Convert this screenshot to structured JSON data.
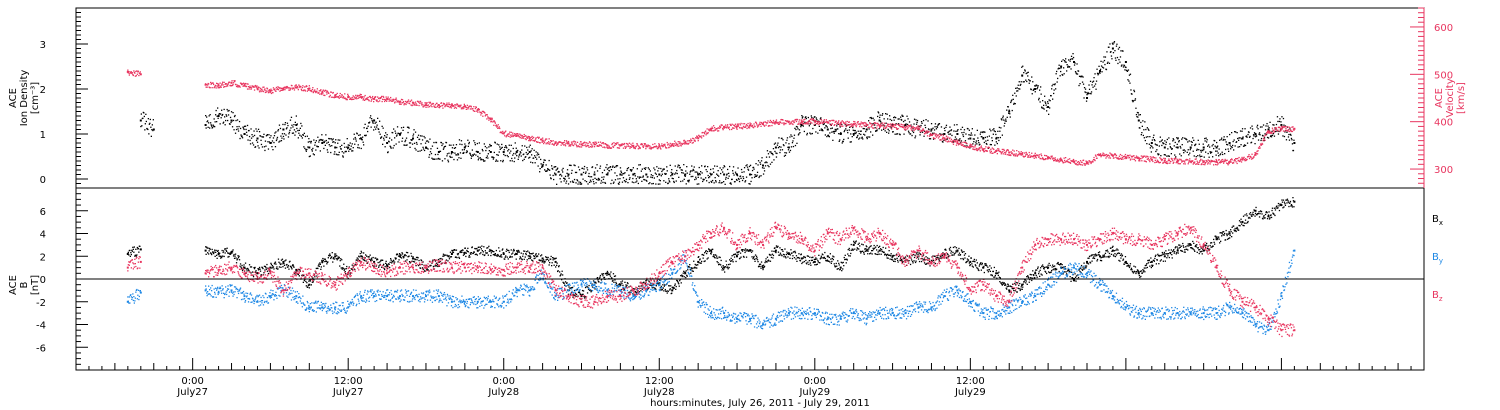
{
  "chart_data": [
    {
      "type": "scatter",
      "panel": "top",
      "ylabel_left": [
        "ACE",
        "Ion Density",
        "[cm⁻³]"
      ],
      "ylabel_right": [
        "ACE",
        "Velocity",
        "[km/s]"
      ],
      "ylim_left": [
        -0.2,
        3.8
      ],
      "yticks_left": [
        "0",
        "1",
        "2",
        "3"
      ],
      "ylim_right": [
        260,
        640
      ],
      "yticks_right": [
        "300",
        "400",
        "500",
        "600"
      ],
      "colors": {
        "density": "#000000",
        "velocity": "#e8355f",
        "right_axis": "#e8355f"
      },
      "series": [
        {
          "axis": "left",
          "color": "#000000",
          "x": [
            -4,
            -3,
            1,
            2,
            3,
            4,
            5,
            6,
            7,
            8,
            9,
            10,
            11,
            12,
            13,
            14,
            15,
            16,
            17,
            18,
            19,
            20,
            21,
            22,
            23,
            24,
            25,
            26,
            27,
            28,
            29,
            30,
            31,
            32,
            33,
            34,
            35,
            36,
            37,
            38,
            39,
            40,
            41,
            42,
            43,
            44,
            45,
            46,
            47,
            48,
            49,
            50,
            51,
            52,
            53,
            54,
            55,
            56,
            57,
            58,
            59,
            60,
            61,
            62,
            63,
            64,
            65,
            66,
            67,
            68,
            69,
            70,
            71,
            72,
            73,
            74,
            75,
            76,
            77,
            78,
            79,
            80,
            81,
            82,
            83,
            84,
            85
          ],
          "y": [
            1.3,
            1.1,
            1.2,
            1.4,
            1.3,
            1.0,
            0.9,
            0.8,
            1.1,
            1.2,
            0.7,
            0.8,
            0.7,
            0.7,
            0.9,
            1.3,
            0.8,
            1.0,
            0.9,
            0.7,
            0.6,
            0.6,
            0.7,
            0.6,
            0.6,
            0.6,
            0.6,
            0.6,
            0.3,
            0.1,
            0.1,
            0.1,
            0.1,
            0.1,
            0.1,
            0.1,
            0.1,
            0.1,
            0.1,
            0.1,
            0.1,
            0.1,
            0.1,
            0.1,
            0.1,
            0.3,
            0.7,
            0.7,
            1.2,
            1.2,
            1.1,
            1.0,
            1.0,
            1.1,
            1.3,
            1.2,
            1.2,
            1.1,
            1.1,
            1.0,
            1.0,
            0.9,
            0.9,
            0.9,
            1.5,
            2.3,
            2.0,
            1.6,
            2.5,
            2.6,
            1.8,
            2.4,
            2.9,
            2.6,
            1.3,
            0.8,
            0.7,
            0.7,
            0.7,
            0.7,
            0.7,
            0.8,
            0.9,
            1.0,
            1.1,
            1.2,
            0.8
          ]
        },
        {
          "axis": "right",
          "color": "#e8355f",
          "x": [
            -5,
            -4,
            1,
            2,
            3,
            4,
            5,
            6,
            7,
            8,
            9,
            10,
            11,
            12,
            13,
            14,
            15,
            16,
            17,
            18,
            19,
            20,
            21,
            22,
            23,
            24,
            25,
            26,
            27,
            28,
            29,
            30,
            31,
            32,
            33,
            34,
            35,
            36,
            37,
            38,
            39,
            40,
            41,
            42,
            43,
            44,
            45,
            46,
            47,
            48,
            49,
            50,
            51,
            52,
            53,
            54,
            55,
            56,
            57,
            58,
            59,
            60,
            61,
            62,
            63,
            64,
            65,
            66,
            67,
            68,
            69,
            70,
            71,
            72,
            73,
            74,
            75,
            76,
            77,
            78,
            79,
            80,
            81,
            82,
            83,
            84,
            85
          ],
          "y": [
            505,
            500,
            478,
            476,
            482,
            476,
            470,
            465,
            470,
            472,
            470,
            462,
            455,
            452,
            452,
            448,
            448,
            442,
            440,
            435,
            435,
            434,
            433,
            425,
            405,
            375,
            370,
            365,
            360,
            356,
            354,
            352,
            352,
            350,
            350,
            349,
            348,
            348,
            352,
            356,
            365,
            385,
            388,
            390,
            392,
            395,
            398,
            400,
            400,
            400,
            398,
            396,
            395,
            393,
            392,
            390,
            388,
            385,
            372,
            365,
            355,
            348,
            342,
            338,
            335,
            332,
            328,
            325,
            320,
            316,
            312,
            330,
            328,
            325,
            323,
            320,
            318,
            317,
            316,
            315,
            315,
            315,
            320,
            330,
            380,
            385,
            385
          ]
        }
      ]
    },
    {
      "type": "scatter",
      "panel": "bottom",
      "ylabel": [
        "ACE",
        "B",
        "[nT]"
      ],
      "ylim": [
        -8,
        8
      ],
      "yticks": [
        "-6",
        "-4",
        "-2",
        "0",
        "2",
        "4",
        "6"
      ],
      "legend_position": "right",
      "series": [
        {
          "name": "Bx",
          "color": "#000000",
          "x": [
            -5,
            -4,
            1,
            2,
            3,
            4,
            5,
            6,
            7,
            8,
            9,
            10,
            11,
            12,
            13,
            14,
            15,
            16,
            17,
            18,
            19,
            20,
            21,
            22,
            23,
            24,
            25,
            26,
            27,
            28,
            29,
            30,
            31,
            32,
            33,
            34,
            35,
            36,
            37,
            38,
            39,
            40,
            41,
            42,
            43,
            44,
            45,
            46,
            47,
            48,
            49,
            50,
            51,
            52,
            53,
            54,
            55,
            56,
            57,
            58,
            59,
            60,
            61,
            62,
            63,
            64,
            65,
            66,
            67,
            68,
            69,
            70,
            71,
            72,
            73,
            74,
            75,
            76,
            77,
            78,
            79,
            80,
            81,
            82,
            83,
            84,
            85
          ],
          "y": [
            2.2,
            2.6,
            2.5,
            2.2,
            2.3,
            1.0,
            0.5,
            1.0,
            1.5,
            0.8,
            -0.5,
            1.5,
            2.0,
            0.5,
            2.0,
            1.5,
            1.2,
            2.0,
            1.8,
            1.0,
            1.5,
            2.2,
            2.3,
            2.5,
            2.5,
            2.2,
            2.2,
            2.0,
            1.8,
            1.5,
            -1.0,
            -1.5,
            -0.5,
            0.5,
            -0.5,
            -1.0,
            -0.5,
            -0.5,
            -1.0,
            0.5,
            1.5,
            2.5,
            1.0,
            2.0,
            2.5,
            1.0,
            2.5,
            2.2,
            1.8,
            1.5,
            2.0,
            1.0,
            3.0,
            2.5,
            2.5,
            2.0,
            1.5,
            2.0,
            1.5,
            2.2,
            2.5,
            1.5,
            1.0,
            0.5,
            -1.0,
            -0.5,
            0.5,
            1.0,
            1.0,
            0.0,
            1.5,
            2.0,
            2.5,
            1.5,
            0.5,
            1.5,
            2.0,
            2.5,
            3.0,
            2.5,
            3.5,
            4.0,
            5.0,
            6.0,
            5.5,
            6.5,
            6.8
          ]
        },
        {
          "name": "By",
          "color": "#1e88e5",
          "x": [
            -5,
            -4,
            1,
            2,
            3,
            4,
            5,
            6,
            7,
            8,
            9,
            10,
            11,
            12,
            13,
            14,
            15,
            16,
            17,
            18,
            19,
            20,
            21,
            22,
            23,
            24,
            25,
            26,
            27,
            28,
            29,
            30,
            31,
            32,
            33,
            34,
            35,
            36,
            37,
            38,
            39,
            40,
            41,
            42,
            43,
            44,
            45,
            46,
            47,
            48,
            49,
            50,
            51,
            52,
            53,
            54,
            55,
            56,
            57,
            58,
            59,
            60,
            61,
            62,
            63,
            64,
            65,
            66,
            67,
            68,
            69,
            70,
            71,
            72,
            73,
            74,
            75,
            76,
            77,
            78,
            79,
            80,
            81,
            82,
            83,
            84,
            85
          ],
          "y": [
            -2.0,
            -1.2,
            -1.0,
            -1.2,
            -1.0,
            -1.5,
            -2.0,
            -1.5,
            -1.0,
            -1.5,
            -2.5,
            -2.5,
            -2.5,
            -2.5,
            -1.5,
            -1.5,
            -1.5,
            -1.5,
            -1.5,
            -1.5,
            -1.5,
            -2.0,
            -2.0,
            -2.0,
            -2.0,
            -2.0,
            -1.0,
            -1.0,
            0.5,
            -1.5,
            -1.0,
            -0.5,
            -0.5,
            -1.0,
            -1.0,
            -1.5,
            -1.0,
            -0.5,
            0.5,
            2.0,
            -2.0,
            -3.0,
            -3.0,
            -3.5,
            -3.5,
            -4.0,
            -3.5,
            -3.0,
            -3.0,
            -3.0,
            -3.5,
            -3.5,
            -3.0,
            -3.5,
            -3.0,
            -3.0,
            -3.0,
            -2.5,
            -2.5,
            -1.5,
            -1.0,
            -2.0,
            -3.0,
            -3.0,
            -2.5,
            -2.0,
            -1.5,
            -0.5,
            0.5,
            1.0,
            0.5,
            -0.5,
            -1.5,
            -2.5,
            -3.0,
            -3.0,
            -3.0,
            -3.0,
            -3.0,
            -3.0,
            -3.0,
            -2.5,
            -3.0,
            -4.0,
            -4.5,
            -1.5,
            2.5
          ]
        },
        {
          "name": "Bz",
          "color": "#e8355f",
          "x": [
            -5,
            -4,
            1,
            2,
            3,
            4,
            5,
            6,
            7,
            8,
            9,
            10,
            11,
            12,
            13,
            14,
            15,
            16,
            17,
            18,
            19,
            20,
            21,
            22,
            23,
            24,
            25,
            26,
            27,
            28,
            29,
            30,
            31,
            32,
            33,
            34,
            35,
            36,
            37,
            38,
            39,
            40,
            41,
            42,
            43,
            44,
            45,
            46,
            47,
            48,
            49,
            50,
            51,
            52,
            53,
            54,
            55,
            56,
            57,
            58,
            59,
            60,
            61,
            62,
            63,
            64,
            65,
            66,
            67,
            68,
            69,
            70,
            71,
            72,
            73,
            74,
            75,
            76,
            77,
            78,
            79,
            80,
            81,
            82,
            83,
            84,
            85
          ],
          "y": [
            1.0,
            1.5,
            0.5,
            0.8,
            1.0,
            0.5,
            0.0,
            0.5,
            -1.0,
            0.5,
            0.5,
            0.0,
            -0.5,
            0.5,
            1.5,
            1.0,
            0.5,
            1.0,
            1.0,
            1.0,
            1.2,
            1.0,
            1.0,
            1.0,
            0.8,
            0.8,
            1.0,
            1.0,
            1.0,
            -1.0,
            -1.5,
            -2.0,
            -2.0,
            -1.5,
            -1.5,
            -1.0,
            -0.5,
            0.5,
            1.5,
            2.0,
            3.0,
            4.0,
            4.5,
            3.0,
            4.0,
            3.0,
            4.5,
            4.0,
            3.5,
            2.5,
            4.0,
            3.5,
            4.5,
            3.5,
            4.0,
            3.0,
            1.5,
            2.5,
            1.5,
            2.0,
            1.0,
            -1.0,
            -0.5,
            -1.5,
            -2.0,
            1.0,
            3.0,
            3.5,
            3.5,
            3.5,
            3.0,
            3.5,
            4.0,
            3.5,
            3.5,
            3.0,
            3.5,
            4.0,
            4.5,
            3.0,
            1.0,
            -1.0,
            -2.0,
            -2.5,
            -3.5,
            -4.5,
            -4.5
          ]
        }
      ]
    }
  ],
  "panels": {
    "top": {
      "ylabel_left": [
        "ACE",
        "Ion Density",
        "[cm⁻³]"
      ],
      "yticks_left": [
        "0",
        "1",
        "2",
        "3"
      ],
      "ylabel_right": [
        "ACE",
        "Velocity",
        "[km/s]"
      ],
      "yticks_right": [
        "300",
        "400",
        "500",
        "600"
      ]
    },
    "bottom": {
      "ylabel": [
        "ACE",
        "B",
        "[nT]"
      ],
      "yticks": [
        "-6",
        "-4",
        "-2",
        "0",
        "2",
        "4",
        "6"
      ],
      "legend": [
        {
          "base": "B",
          "sub": "x",
          "color": "#000000"
        },
        {
          "base": "B",
          "sub": "y",
          "color": "#1e88e5"
        },
        {
          "base": "B",
          "sub": "z",
          "color": "#e8355f"
        }
      ]
    }
  },
  "x_axis": {
    "range_hours": [
      -9,
      95
    ],
    "ticks": [
      {
        "hour": 0,
        "time": "0:00",
        "day": "July27"
      },
      {
        "hour": 12,
        "time": "12:00",
        "day": "July27"
      },
      {
        "hour": 24,
        "time": "0:00",
        "day": "July28"
      },
      {
        "hour": 36,
        "time": "12:00",
        "day": "July28"
      },
      {
        "hour": 48,
        "time": "0:00",
        "day": "July29"
      },
      {
        "hour": 60,
        "time": "12:00",
        "day": "July29"
      }
    ],
    "title": "hours:minutes, July 26, 2011 - July 29, 2011"
  }
}
